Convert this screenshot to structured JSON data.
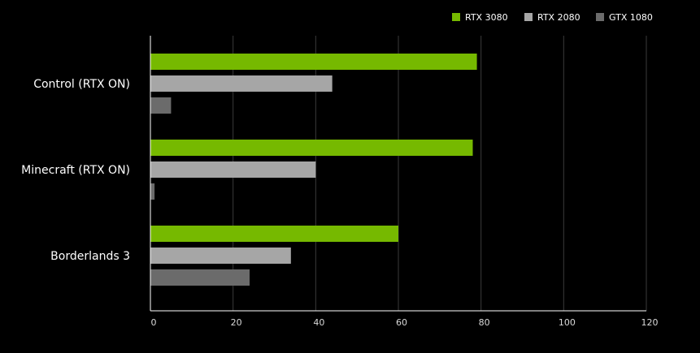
{
  "chart_data": {
    "type": "bar",
    "orientation": "horizontal",
    "title": "",
    "xlabel": "",
    "ylabel": "",
    "xlim": [
      0,
      120
    ],
    "x_ticks": [
      0,
      20,
      40,
      60,
      80,
      100,
      120
    ],
    "grid": "vertical",
    "legend_position": "top-right",
    "categories": [
      "Control (RTX ON)",
      "Minecraft (RTX ON)",
      "Borderlands 3"
    ],
    "series": [
      {
        "name": "RTX 3080",
        "color": "#76b900",
        "values": [
          79,
          78,
          60
        ]
      },
      {
        "name": "RTX 2080",
        "color": "#a6a6a6",
        "values": [
          44,
          40,
          34
        ]
      },
      {
        "name": "GTX 1080",
        "color": "#6b6b6b",
        "values": [
          5,
          1,
          24
        ]
      }
    ],
    "colors": {
      "background": "#000000",
      "text": "#ffffff",
      "tick_text": "#d9d9d9",
      "grid": "#3a3a3a",
      "axis": "#ffffff"
    }
  }
}
